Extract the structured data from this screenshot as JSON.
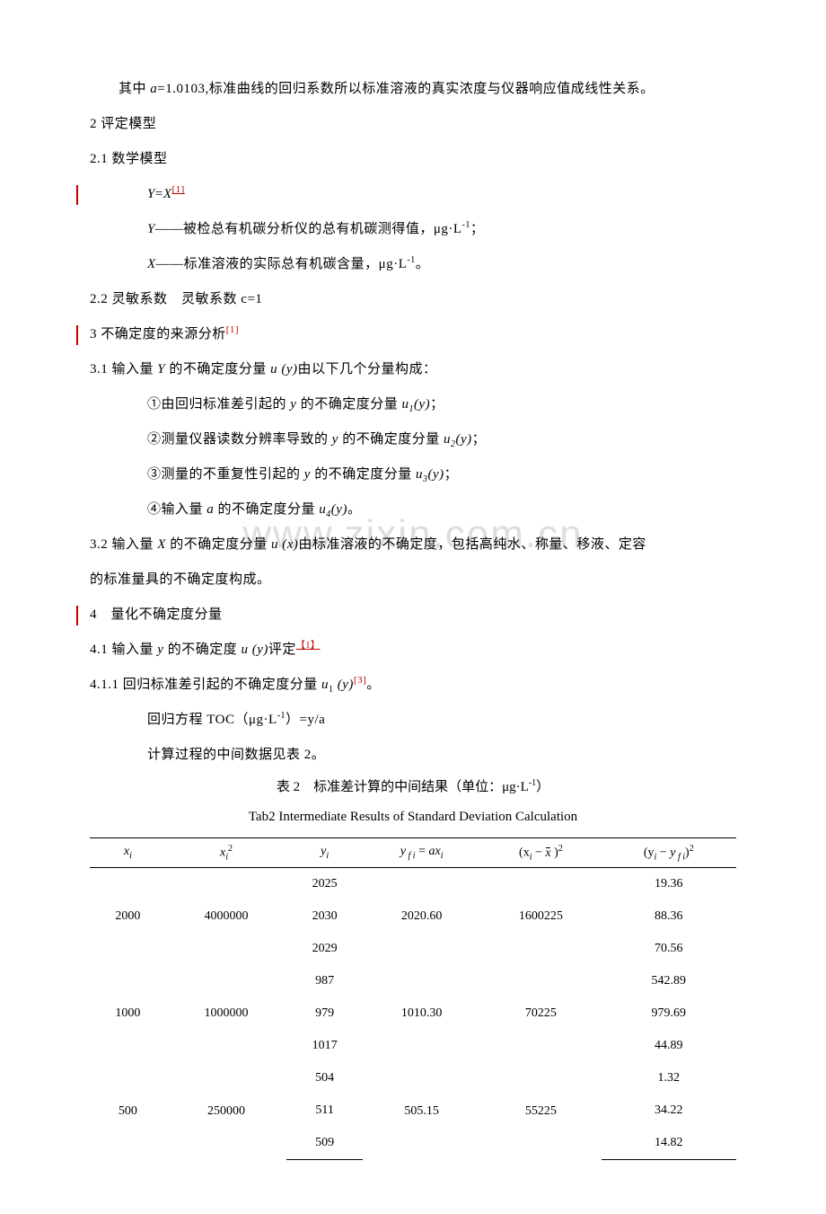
{
  "watermark": "www.zixin.com.cn",
  "para1": {
    "prefix": "其中 ",
    "a_label": "a",
    "a_value": "=1.0103,",
    "rest": "标准曲线的回归系数所以标准溶液的真实浓度与仪器响应值成线性关系。"
  },
  "section2": "2  评定模型",
  "section21": "2.1  数学模型",
  "eq": {
    "lhs": "Y",
    "eq": "=",
    "rhs": "X",
    "ref": "[1]"
  },
  "ydef": {
    "sym": "Y",
    "dash": "——",
    "text": "被检总有机碳分析仪的总有机碳测得值，μg·L",
    "exp": "-1",
    "end": "；"
  },
  "xdef": {
    "sym": "X",
    "dash": "——",
    "text": "标准溶液的实际总有机碳含量，μg·L",
    "exp": "-1",
    "end": "。"
  },
  "section22": {
    "label": "2.2  灵敏系数",
    "gap": "　",
    "text": "灵敏系数 c=1"
  },
  "section3": {
    "label": "3  不确定度的来源分析",
    "ref": "[1]"
  },
  "section31": {
    "prefix": "3.1  输入量 ",
    "Y": "Y",
    "mid1": " 的不确定度分量 ",
    "uy": "u",
    "uy_arg": " (y)",
    "rest": "由以下几个分量构成："
  },
  "item1": {
    "num": "①",
    "t1": "由回归标准差引起的 ",
    "y": "y",
    "t2": " 的不确定度分量 ",
    "u": "u",
    "sub": "1",
    "arg": "(y)",
    "end": "；"
  },
  "item2": {
    "num": "②",
    "t1": "测量仪器读数分辨率导致的 ",
    "y": "y",
    "t2": " 的不确定度分量 ",
    "u": "u",
    "sub": "2",
    "arg": "(y)",
    "end": "；"
  },
  "item3": {
    "num": "③",
    "t1": "测量的不重复性引起的 ",
    "y": "y",
    "t2": " 的不确定度分量 ",
    "u": "u",
    "sub": "3",
    "arg": "(y)",
    "end": "；"
  },
  "item4": {
    "num": "④",
    "t1": "输入量 ",
    "a": "a",
    "t2": " 的不确定度分量 ",
    "u": "u",
    "sub": "4",
    "arg": "(y)",
    "end": "。"
  },
  "section32": {
    "prefix": "3.2 输入量 ",
    "X": "X",
    "mid1": " 的不确定度分量 ",
    "u": "u",
    "arg": " (x)",
    "rest1": "由标准溶液的不确定度，包括高纯水、称量、移液、定容",
    "rest2": "的标准量具的不确定度构成。"
  },
  "section4": "4　量化不确定度分量",
  "section41": {
    "prefix": "4.1  输入量 ",
    "y": "y",
    "mid": " 的不确定度 ",
    "u": "u",
    "arg": " (y)",
    "text": "评定",
    "ref": "【1】"
  },
  "section411": {
    "prefix": "4.1.1  回归标准差引起的不确定度分量 ",
    "u": "u",
    "sub": "1",
    "arg": " (y)",
    "ref": "[3]",
    "end": "。"
  },
  "regress": {
    "t1": "回归方程 TOC（μg·L",
    "exp": "-1",
    "t2": "）=y/a"
  },
  "calc_note": "计算过程的中间数据见表 2。",
  "table_caption_cn": {
    "t1": "表 2　标准差计算的中间结果（单位：μg·L",
    "exp": "-1",
    "t2": "）"
  },
  "table_caption_en": "Tab2 Intermediate Results of Standard Deviation Calculation",
  "table": {
    "headers": {
      "c1": "x",
      "c1i": "i",
      "c2": "x",
      "c2i": "i",
      "c2sup": "2",
      "c3": "y",
      "c3i": "i",
      "c4a": "y",
      "c4fi": " f i",
      "c4eq": " = ",
      "c4b": "ax",
      "c4bi": "i",
      "c5a": "(x",
      "c5i": "i",
      "c5dash": " − ",
      "c5x": "x",
      "c5end": " )",
      "c5sup": "2",
      "c6a": "(y",
      "c6i": "i",
      "c6dash": " − ",
      "c6y": "y",
      "c6fi": " f i",
      "c6end": ")",
      "c6sup": "2"
    },
    "groups": [
      {
        "xi": "2000",
        "xi2": "4000000",
        "yfi": "2020.60",
        "dx2": "1600225",
        "rows": [
          {
            "yi": "2025",
            "dy2": "19.36"
          },
          {
            "yi": "2030",
            "dy2": "88.36"
          },
          {
            "yi": "2029",
            "dy2": "70.56"
          }
        ]
      },
      {
        "xi": "1000",
        "xi2": "1000000",
        "yfi": "1010.30",
        "dx2": "70225",
        "rows": [
          {
            "yi": "987",
            "dy2": "542.89"
          },
          {
            "yi": "979",
            "dy2": "979.69"
          },
          {
            "yi": "1017",
            "dy2": "44.89"
          }
        ]
      },
      {
        "xi": "500",
        "xi2": "250000",
        "yfi": "505.15",
        "dx2": "55225",
        "rows": [
          {
            "yi": "504",
            "dy2": "1.32"
          },
          {
            "yi": "511",
            "dy2": "34.22"
          },
          {
            "yi": "509",
            "dy2": "14.82"
          }
        ]
      }
    ]
  }
}
